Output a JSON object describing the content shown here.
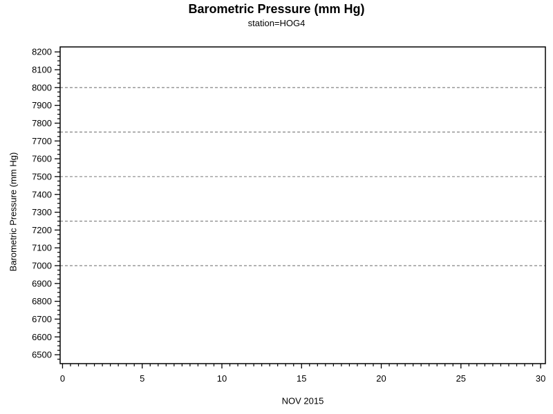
{
  "chart_data": {
    "type": "line",
    "title": "Barometric Pressure (mm Hg)",
    "subtitle": "station=HOG4",
    "xlabel": "NOV 2015",
    "ylabel": "Barometric Pressure (mm Hg)",
    "xlim": [
      -0.15,
      30.3
    ],
    "ylim": [
      6450,
      8228
    ],
    "x_major_ticks": [
      0,
      5,
      10,
      15,
      20,
      25,
      30
    ],
    "x_tick_labels": [
      "0",
      "5",
      "10",
      "15",
      "20",
      "25",
      "30"
    ],
    "x_minor_step": 0.5,
    "y_major_ticks": [
      6500,
      6600,
      6700,
      6800,
      6900,
      7000,
      7100,
      7200,
      7300,
      7400,
      7500,
      7600,
      7700,
      7800,
      7900,
      8000,
      8100,
      8200
    ],
    "y_tick_labels": [
      "6500",
      "6600",
      "6700",
      "6800",
      "6900",
      "7000",
      "7100",
      "7200",
      "7300",
      "7400",
      "7500",
      "7600",
      "7700",
      "7800",
      "7900",
      "8000",
      "8100",
      "8200"
    ],
    "y_minor_step": 25,
    "reference_lines_y": [
      7000,
      7250,
      7500,
      7750,
      8000
    ],
    "series": [],
    "grid": false,
    "frame": true,
    "legend": null,
    "colors": {
      "text": "#000000",
      "axis": "#000000",
      "reference_line": "#848484",
      "background": "#ffffff"
    }
  }
}
